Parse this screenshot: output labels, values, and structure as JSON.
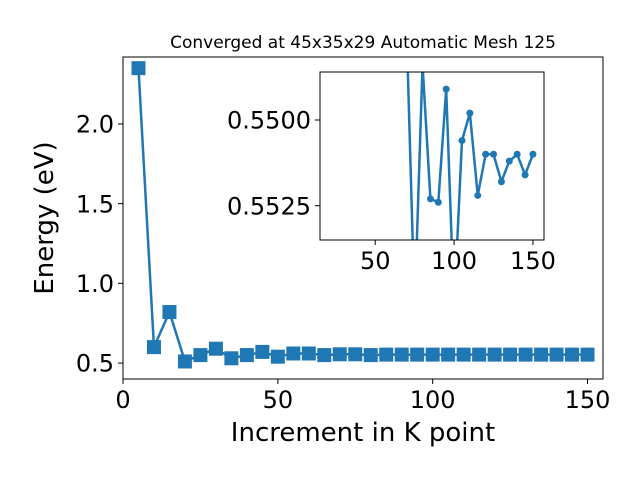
{
  "chart_data": [
    {
      "type": "line",
      "title": "Converged at 45x35x29 Automatic Mesh 125",
      "xlabel": "Increment in K point",
      "ylabel": "Energy (eV)",
      "xlim": [
        0,
        155
      ],
      "ylim": [
        0.4,
        2.42
      ],
      "xticks": [
        0,
        50,
        100,
        150
      ],
      "xtick_labels": [
        "0",
        "50",
        "100",
        "150"
      ],
      "yticks": [
        0.5,
        1.0,
        1.5,
        2.0
      ],
      "ytick_labels": [
        "0.5",
        "1.0",
        "1.5",
        "2.0"
      ],
      "marker": "square",
      "color": "#1f77b4",
      "grid": false,
      "series": [
        {
          "x": [
            5,
            10,
            15,
            20,
            25,
            30,
            35,
            40,
            45,
            50,
            55,
            60,
            65,
            70,
            75,
            80,
            85,
            90,
            95,
            100,
            105,
            110,
            115,
            120,
            125,
            130,
            135,
            140,
            145,
            150
          ],
          "y": [
            2.35,
            0.6,
            0.82,
            0.51,
            0.55,
            0.59,
            0.53,
            0.55,
            0.57,
            0.54,
            0.56,
            0.56,
            0.55,
            0.555,
            0.555,
            0.55,
            0.553,
            0.553,
            0.553,
            0.553,
            0.553,
            0.553,
            0.553,
            0.553,
            0.553,
            0.553,
            0.553,
            0.553,
            0.553,
            0.553
          ]
        }
      ]
    },
    {
      "type": "line",
      "title": "",
      "xlabel": "",
      "ylabel": "",
      "xlim": [
        15,
        157
      ],
      "ylim": [
        0.5486,
        0.5535
      ],
      "y_inverted": true,
      "xticks": [
        50,
        100,
        150
      ],
      "xtick_labels": [
        "50",
        "100",
        "150"
      ],
      "yticks": [
        0.55,
        0.5525
      ],
      "ytick_labels": [
        "0.5500",
        "0.5525"
      ],
      "marker": "circle",
      "color": "#1f77b4",
      "grid": false,
      "series": [
        {
          "x": [
            70,
            75,
            80,
            85,
            90,
            95,
            100,
            105,
            110,
            115,
            120,
            125,
            130,
            135,
            140,
            145,
            150
          ],
          "y": [
            0.5475,
            0.5555,
            0.5484,
            0.5523,
            0.5524,
            0.5491,
            0.5555,
            0.5506,
            0.5498,
            0.5522,
            0.551,
            0.551,
            0.5518,
            0.5512,
            0.551,
            0.5516,
            0.551
          ]
        }
      ]
    }
  ]
}
